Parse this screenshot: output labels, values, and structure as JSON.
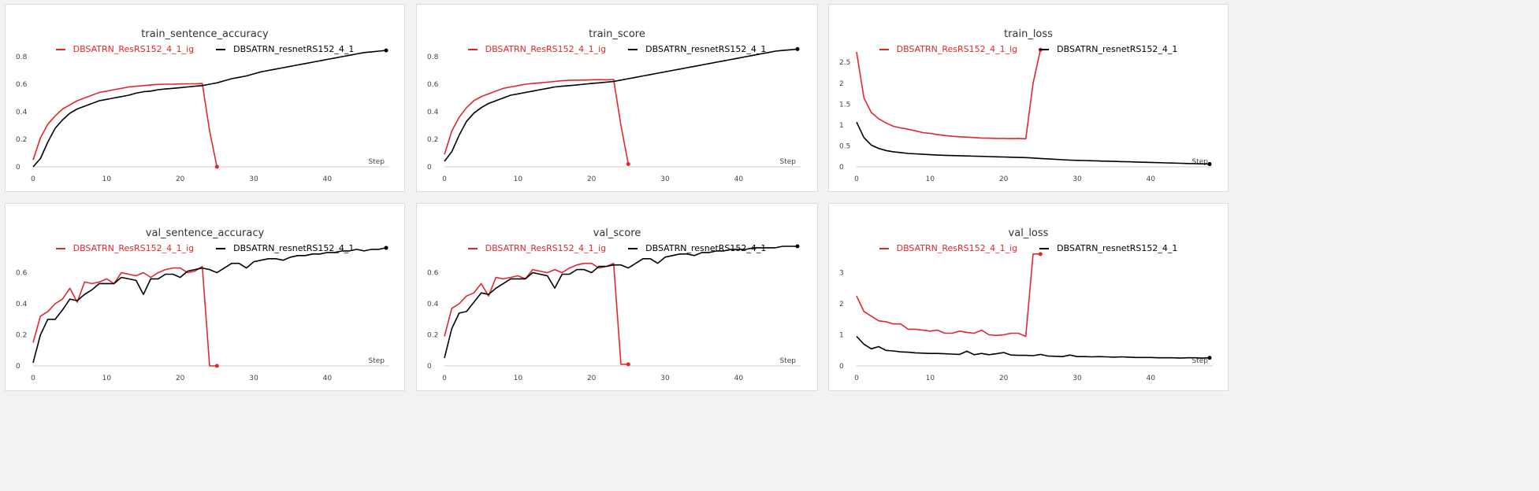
{
  "colors": {
    "run_ig": "#e4262b",
    "run_base": "#000000",
    "axis": "#cccccc"
  },
  "x_axis_label": "Step",
  "chart_data": [
    {
      "type": "line",
      "title": "train_sentence_accuracy",
      "xlim": [
        0,
        48
      ],
      "ylim": [
        0,
        0.88
      ],
      "xticks": [
        0,
        10,
        20,
        30,
        40
      ],
      "yticks": [
        "0",
        "0.2",
        "0.4",
        "0.6",
        "0.8"
      ],
      "ytick_values": [
        0,
        0.2,
        0.4,
        0.6,
        0.8
      ],
      "series": [
        {
          "name": "DBSATRN_ResRS152_4_1_ig",
          "color": "#e4262b",
          "x": [
            0,
            1,
            2,
            3,
            4,
            5,
            6,
            7,
            8,
            9,
            10,
            11,
            12,
            13,
            14,
            15,
            16,
            17,
            18,
            19,
            20,
            21,
            22,
            23,
            24,
            25
          ],
          "y": [
            0.05,
            0.21,
            0.31,
            0.37,
            0.42,
            0.45,
            0.48,
            0.5,
            0.52,
            0.54,
            0.55,
            0.56,
            0.57,
            0.58,
            0.585,
            0.59,
            0.595,
            0.598,
            0.6,
            0.6,
            0.602,
            0.603,
            0.603,
            0.605,
            0.26,
            0.0
          ]
        },
        {
          "name": "DBSATRN_resnetRS152_4_1",
          "color": "#000000",
          "x": [
            0,
            1,
            2,
            3,
            4,
            5,
            6,
            7,
            8,
            9,
            10,
            11,
            12,
            13,
            14,
            15,
            16,
            17,
            18,
            19,
            20,
            21,
            22,
            23,
            24,
            25,
            26,
            27,
            28,
            29,
            30,
            31,
            32,
            33,
            34,
            35,
            36,
            37,
            38,
            39,
            40,
            41,
            42,
            43,
            44,
            45,
            46,
            47,
            48
          ],
          "y": [
            0.0,
            0.06,
            0.18,
            0.28,
            0.34,
            0.39,
            0.42,
            0.44,
            0.46,
            0.48,
            0.49,
            0.5,
            0.51,
            0.52,
            0.535,
            0.545,
            0.55,
            0.56,
            0.565,
            0.57,
            0.575,
            0.58,
            0.585,
            0.59,
            0.6,
            0.61,
            0.625,
            0.64,
            0.65,
            0.66,
            0.675,
            0.69,
            0.7,
            0.71,
            0.72,
            0.73,
            0.74,
            0.75,
            0.76,
            0.77,
            0.78,
            0.79,
            0.8,
            0.81,
            0.82,
            0.83,
            0.835,
            0.84,
            0.845
          ]
        }
      ]
    },
    {
      "type": "line",
      "title": "train_score",
      "xlim": [
        0,
        48
      ],
      "ylim": [
        0,
        0.88
      ],
      "xticks": [
        0,
        10,
        20,
        30,
        40
      ],
      "yticks": [
        "0",
        "0.2",
        "0.4",
        "0.6",
        "0.8"
      ],
      "ytick_values": [
        0,
        0.2,
        0.4,
        0.6,
        0.8
      ],
      "series": [
        {
          "name": "DBSATRN_ResRS152_4_1_ig",
          "color": "#e4262b",
          "x": [
            0,
            1,
            2,
            3,
            4,
            5,
            6,
            7,
            8,
            9,
            10,
            11,
            12,
            13,
            14,
            15,
            16,
            17,
            18,
            19,
            20,
            21,
            22,
            23,
            24,
            25
          ],
          "y": [
            0.09,
            0.26,
            0.36,
            0.43,
            0.48,
            0.51,
            0.53,
            0.55,
            0.57,
            0.58,
            0.59,
            0.6,
            0.605,
            0.61,
            0.615,
            0.62,
            0.625,
            0.628,
            0.63,
            0.63,
            0.632,
            0.633,
            0.632,
            0.634,
            0.3,
            0.02
          ]
        },
        {
          "name": "DBSATRN_resnetRS152_4_1",
          "color": "#000000",
          "x": [
            0,
            1,
            2,
            3,
            4,
            5,
            6,
            7,
            8,
            9,
            10,
            11,
            12,
            13,
            14,
            15,
            16,
            17,
            18,
            19,
            20,
            21,
            22,
            23,
            24,
            25,
            26,
            27,
            28,
            29,
            30,
            31,
            32,
            33,
            34,
            35,
            36,
            37,
            38,
            39,
            40,
            41,
            42,
            43,
            44,
            45,
            46,
            47,
            48
          ],
          "y": [
            0.04,
            0.11,
            0.23,
            0.33,
            0.39,
            0.43,
            0.46,
            0.48,
            0.5,
            0.52,
            0.53,
            0.54,
            0.55,
            0.56,
            0.57,
            0.58,
            0.585,
            0.59,
            0.595,
            0.6,
            0.605,
            0.61,
            0.615,
            0.62,
            0.63,
            0.64,
            0.65,
            0.66,
            0.67,
            0.68,
            0.69,
            0.7,
            0.71,
            0.72,
            0.73,
            0.74,
            0.75,
            0.76,
            0.77,
            0.78,
            0.79,
            0.8,
            0.81,
            0.82,
            0.83,
            0.84,
            0.845,
            0.85,
            0.855
          ]
        }
      ]
    },
    {
      "type": "line",
      "title": "train_loss",
      "xlim": [
        0,
        48
      ],
      "ylim": [
        0,
        2.9
      ],
      "xticks": [
        0,
        10,
        20,
        30,
        40
      ],
      "yticks": [
        "0",
        "0.5",
        "1",
        "1.5",
        "2",
        "2.5"
      ],
      "ytick_values": [
        0,
        0.5,
        1,
        1.5,
        2,
        2.5
      ],
      "series": [
        {
          "name": "DBSATRN_ResRS152_4_1_ig",
          "color": "#e4262b",
          "x": [
            0,
            1,
            2,
            3,
            4,
            5,
            6,
            7,
            8,
            9,
            10,
            11,
            12,
            13,
            14,
            15,
            16,
            17,
            18,
            19,
            20,
            21,
            22,
            23,
            24,
            25
          ],
          "y": [
            2.75,
            1.65,
            1.3,
            1.15,
            1.05,
            0.97,
            0.93,
            0.9,
            0.86,
            0.82,
            0.8,
            0.77,
            0.75,
            0.73,
            0.72,
            0.71,
            0.7,
            0.69,
            0.685,
            0.68,
            0.68,
            0.675,
            0.68,
            0.67,
            2.0,
            2.8
          ]
        },
        {
          "name": "DBSATRN_resnetRS152_4_1",
          "color": "#000000",
          "x": [
            0,
            1,
            2,
            3,
            4,
            5,
            6,
            7,
            8,
            9,
            10,
            11,
            12,
            13,
            14,
            15,
            16,
            17,
            18,
            19,
            20,
            21,
            22,
            23,
            24,
            25,
            26,
            27,
            28,
            29,
            30,
            31,
            32,
            33,
            34,
            35,
            36,
            37,
            38,
            39,
            40,
            41,
            42,
            43,
            44,
            45,
            46,
            47,
            48
          ],
          "y": [
            1.07,
            0.7,
            0.52,
            0.44,
            0.39,
            0.36,
            0.34,
            0.32,
            0.31,
            0.3,
            0.29,
            0.28,
            0.275,
            0.27,
            0.265,
            0.26,
            0.255,
            0.25,
            0.245,
            0.24,
            0.235,
            0.23,
            0.225,
            0.22,
            0.21,
            0.2,
            0.19,
            0.18,
            0.17,
            0.16,
            0.155,
            0.15,
            0.145,
            0.14,
            0.135,
            0.13,
            0.125,
            0.12,
            0.115,
            0.11,
            0.105,
            0.1,
            0.095,
            0.09,
            0.085,
            0.08,
            0.075,
            0.07,
            0.065
          ]
        }
      ]
    },
    {
      "type": "line",
      "title": "val_sentence_accuracy",
      "xlim": [
        0,
        48
      ],
      "ylim": [
        0,
        0.78
      ],
      "xticks": [
        0,
        10,
        20,
        30,
        40
      ],
      "yticks": [
        "0",
        "0.2",
        "0.4",
        "0.6"
      ],
      "ytick_values": [
        0,
        0.2,
        0.4,
        0.6
      ],
      "series": [
        {
          "name": "DBSATRN_ResRS152_4_1_ig",
          "color": "#e4262b",
          "x": [
            0,
            1,
            2,
            3,
            4,
            5,
            6,
            7,
            8,
            9,
            10,
            11,
            12,
            13,
            14,
            15,
            16,
            17,
            18,
            19,
            20,
            21,
            22,
            23,
            24,
            25
          ],
          "y": [
            0.15,
            0.32,
            0.35,
            0.4,
            0.43,
            0.5,
            0.41,
            0.54,
            0.53,
            0.54,
            0.56,
            0.53,
            0.6,
            0.59,
            0.58,
            0.6,
            0.57,
            0.6,
            0.62,
            0.63,
            0.63,
            0.6,
            0.61,
            0.64,
            0.0,
            0.0
          ]
        },
        {
          "name": "DBSATRN_resnetRS152_4_1",
          "color": "#000000",
          "x": [
            0,
            1,
            2,
            3,
            4,
            5,
            6,
            7,
            8,
            9,
            10,
            11,
            12,
            13,
            14,
            15,
            16,
            17,
            18,
            19,
            20,
            21,
            22,
            23,
            24,
            25,
            26,
            27,
            28,
            29,
            30,
            31,
            32,
            33,
            34,
            35,
            36,
            37,
            38,
            39,
            40,
            41,
            42,
            43,
            44,
            45,
            46,
            47,
            48
          ],
          "y": [
            0.02,
            0.2,
            0.3,
            0.3,
            0.36,
            0.43,
            0.42,
            0.46,
            0.49,
            0.53,
            0.53,
            0.53,
            0.57,
            0.56,
            0.55,
            0.46,
            0.56,
            0.56,
            0.59,
            0.59,
            0.57,
            0.61,
            0.62,
            0.63,
            0.62,
            0.6,
            0.63,
            0.66,
            0.66,
            0.63,
            0.67,
            0.68,
            0.69,
            0.69,
            0.68,
            0.7,
            0.71,
            0.71,
            0.72,
            0.72,
            0.73,
            0.73,
            0.74,
            0.74,
            0.75,
            0.74,
            0.75,
            0.75,
            0.76
          ]
        }
      ]
    },
    {
      "type": "line",
      "title": "val_score",
      "xlim": [
        0,
        48
      ],
      "ylim": [
        0,
        0.78
      ],
      "xticks": [
        0,
        10,
        20,
        30,
        40
      ],
      "yticks": [
        "0",
        "0.2",
        "0.4",
        "0.6"
      ],
      "ytick_values": [
        0,
        0.2,
        0.4,
        0.6
      ],
      "series": [
        {
          "name": "DBSATRN_ResRS152_4_1_ig",
          "color": "#e4262b",
          "x": [
            0,
            1,
            2,
            3,
            4,
            5,
            6,
            7,
            8,
            9,
            10,
            11,
            12,
            13,
            14,
            15,
            16,
            17,
            18,
            19,
            20,
            21,
            22,
            23,
            24,
            25
          ],
          "y": [
            0.19,
            0.37,
            0.4,
            0.45,
            0.47,
            0.53,
            0.45,
            0.57,
            0.56,
            0.57,
            0.58,
            0.56,
            0.62,
            0.61,
            0.6,
            0.62,
            0.6,
            0.63,
            0.65,
            0.66,
            0.66,
            0.63,
            0.64,
            0.66,
            0.01,
            0.01
          ]
        },
        {
          "name": "DBSATRN_resnetRS152_4_1",
          "color": "#000000",
          "x": [
            0,
            1,
            2,
            3,
            4,
            5,
            6,
            7,
            8,
            9,
            10,
            11,
            12,
            13,
            14,
            15,
            16,
            17,
            18,
            19,
            20,
            21,
            22,
            23,
            24,
            25,
            26,
            27,
            28,
            29,
            30,
            31,
            32,
            33,
            34,
            35,
            36,
            37,
            38,
            39,
            40,
            41,
            42,
            43,
            44,
            45,
            46,
            47,
            48
          ],
          "y": [
            0.05,
            0.24,
            0.34,
            0.35,
            0.41,
            0.47,
            0.46,
            0.5,
            0.53,
            0.56,
            0.56,
            0.56,
            0.6,
            0.59,
            0.58,
            0.5,
            0.59,
            0.59,
            0.62,
            0.62,
            0.6,
            0.64,
            0.64,
            0.65,
            0.65,
            0.63,
            0.66,
            0.69,
            0.69,
            0.66,
            0.7,
            0.71,
            0.72,
            0.72,
            0.71,
            0.73,
            0.73,
            0.74,
            0.74,
            0.75,
            0.75,
            0.75,
            0.76,
            0.76,
            0.76,
            0.76,
            0.77,
            0.77,
            0.77
          ]
        }
      ]
    },
    {
      "type": "line",
      "title": "val_loss",
      "xlim": [
        0,
        48
      ],
      "ylim": [
        0,
        3.9
      ],
      "xticks": [
        0,
        10,
        20,
        30,
        40
      ],
      "yticks": [
        "0",
        "1",
        "2",
        "3"
      ],
      "ytick_values": [
        0,
        1,
        2,
        3
      ],
      "series": [
        {
          "name": "DBSATRN_ResRS152_4_1_ig",
          "color": "#e4262b",
          "x": [
            0,
            1,
            2,
            3,
            4,
            5,
            6,
            7,
            8,
            9,
            10,
            11,
            12,
            13,
            14,
            15,
            16,
            17,
            18,
            19,
            20,
            21,
            22,
            23,
            24,
            25
          ],
          "y": [
            2.25,
            1.75,
            1.6,
            1.45,
            1.42,
            1.35,
            1.35,
            1.18,
            1.18,
            1.15,
            1.12,
            1.15,
            1.05,
            1.05,
            1.12,
            1.08,
            1.05,
            1.15,
            1.0,
            0.98,
            1.0,
            1.05,
            1.05,
            0.95,
            3.6,
            3.6
          ]
        },
        {
          "name": "DBSATRN_resnetRS152_4_1",
          "color": "#000000",
          "x": [
            0,
            1,
            2,
            3,
            4,
            5,
            6,
            7,
            8,
            9,
            10,
            11,
            12,
            13,
            14,
            15,
            16,
            17,
            18,
            19,
            20,
            21,
            22,
            23,
            24,
            25,
            26,
            27,
            28,
            29,
            30,
            31,
            32,
            33,
            34,
            35,
            36,
            37,
            38,
            39,
            40,
            41,
            42,
            43,
            44,
            45,
            46,
            47,
            48
          ],
          "y": [
            0.95,
            0.7,
            0.55,
            0.62,
            0.5,
            0.48,
            0.45,
            0.44,
            0.42,
            0.41,
            0.4,
            0.4,
            0.39,
            0.38,
            0.37,
            0.47,
            0.36,
            0.4,
            0.36,
            0.39,
            0.43,
            0.35,
            0.34,
            0.34,
            0.33,
            0.37,
            0.32,
            0.31,
            0.3,
            0.35,
            0.3,
            0.3,
            0.29,
            0.3,
            0.29,
            0.28,
            0.29,
            0.28,
            0.27,
            0.27,
            0.27,
            0.26,
            0.26,
            0.26,
            0.25,
            0.26,
            0.26,
            0.25,
            0.26
          ]
        }
      ]
    }
  ]
}
